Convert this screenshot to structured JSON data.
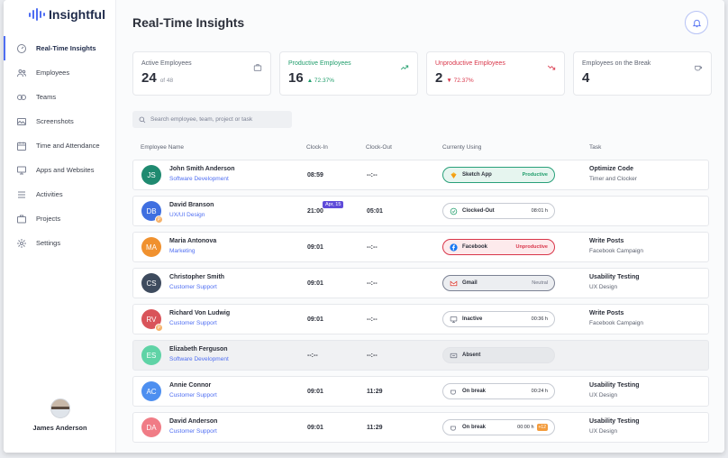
{
  "brand": {
    "name": "Insightful"
  },
  "sidebar": {
    "items": [
      {
        "label": "Real-Time Insights",
        "icon": "gauge-icon",
        "active": true
      },
      {
        "label": "Employees",
        "icon": "users-icon"
      },
      {
        "label": "Teams",
        "icon": "teams-icon"
      },
      {
        "label": "Screenshots",
        "icon": "image-icon"
      },
      {
        "label": "Time and Attendance",
        "icon": "calendar-icon"
      },
      {
        "label": "Apps and Websites",
        "icon": "monitor-icon"
      },
      {
        "label": "Activities",
        "icon": "list-icon"
      },
      {
        "label": "Projects",
        "icon": "briefcase-icon"
      },
      {
        "label": "Settings",
        "icon": "gear-icon"
      }
    ],
    "user": {
      "name": "James Anderson"
    }
  },
  "header": {
    "title": "Real-Time Insights"
  },
  "cards": [
    {
      "label": "Active Employees",
      "value": "24",
      "sub": "of 48",
      "tone": "",
      "icon": "briefcase-icon"
    },
    {
      "label": "Productive Employees",
      "value": "16",
      "sub": "▲ 72.37%",
      "tone": "green",
      "icon": "trend-up-icon"
    },
    {
      "label": "Unproductive Employees",
      "value": "2",
      "sub": "▼ 72.37%",
      "tone": "red",
      "icon": "trend-down-icon"
    },
    {
      "label": "Employees on the Break",
      "value": "4",
      "sub": "",
      "tone": "",
      "icon": "coffee-icon"
    }
  ],
  "search": {
    "placeholder": "Search employee, team, project or task"
  },
  "table": {
    "headers": [
      "Employee Name",
      "Clock-In",
      "Clock-Out",
      "Currenty Using",
      "Task"
    ],
    "rows": [
      {
        "initials": "JS",
        "color": "#1f8a70",
        "name": "John Smith Anderson",
        "team": "Software Development",
        "clock_in": "08:59",
        "clock_out": "--:--",
        "date_badge": "",
        "p": false,
        "status": "productive",
        "app": "Sketch App",
        "app_icon": "sketch-icon",
        "right": "Productive",
        "over": "",
        "task": "Optimize Code",
        "project": "Timer and Clocker",
        "muted": false
      },
      {
        "initials": "DB",
        "color": "#3f6fe0",
        "name": "David Branson",
        "team": "UX/UI Design",
        "clock_in": "21:00",
        "clock_out": "05:01",
        "date_badge": "Apr, 15",
        "p": true,
        "status": "",
        "app": "Clocked-Out",
        "app_icon": "check-circle-icon",
        "right": "08:01 h",
        "over": "",
        "task": "",
        "project": "",
        "muted": false
      },
      {
        "initials": "MA",
        "color": "#f0912f",
        "name": "Maria Antonova",
        "team": "Marketing",
        "clock_in": "09:01",
        "clock_out": "--:--",
        "date_badge": "",
        "p": false,
        "status": "unproductive",
        "app": "Facebook",
        "app_icon": "facebook-icon",
        "right": "Unproductive",
        "over": "",
        "task": "Write Posts",
        "project": "Facebook Campaign",
        "muted": false
      },
      {
        "initials": "CS",
        "color": "#3e4b5e",
        "name": "Christopher Smith",
        "team": "Customer Support",
        "clock_in": "09:01",
        "clock_out": "--:--",
        "date_badge": "",
        "p": false,
        "status": "neutral",
        "app": "Gmail",
        "app_icon": "gmail-icon",
        "right": "Neutral",
        "over": "",
        "task": "Usability Testing",
        "project": "UX Design",
        "muted": false
      },
      {
        "initials": "RV",
        "color": "#d9545a",
        "name": "Richard Von Ludwig",
        "team": "Customer Support",
        "clock_in": "09:01",
        "clock_out": "--:--",
        "date_badge": "",
        "p": true,
        "status": "",
        "app": "Inactive",
        "app_icon": "monitor-icon",
        "right": "00:36 h",
        "over": "",
        "task": "Write Posts",
        "project": "Facebook Campaign",
        "muted": false
      },
      {
        "initials": "ES",
        "color": "#5fd3a6",
        "name": "Elizabeth Ferguson",
        "team": "Software Development",
        "clock_in": "--:--",
        "clock_out": "--:--",
        "date_badge": "",
        "p": false,
        "status": "absent",
        "app": "Absent",
        "app_icon": "absent-icon",
        "right": "",
        "over": "",
        "task": "",
        "project": "",
        "muted": true
      },
      {
        "initials": "AC",
        "color": "#4d8ff0",
        "name": "Annie Connor",
        "team": "Customer Support",
        "clock_in": "09:01",
        "clock_out": "11:29",
        "date_badge": "",
        "p": false,
        "status": "",
        "app": "On break",
        "app_icon": "cup-icon",
        "right": "00:24 h",
        "over": "",
        "task": "Usability Testing",
        "project": "UX Design",
        "muted": false
      },
      {
        "initials": "DA",
        "color": "#f07c86",
        "name": "David Anderson",
        "team": "Customer Support",
        "clock_in": "09:01",
        "clock_out": "11:29",
        "date_badge": "",
        "p": false,
        "status": "",
        "app": "On break",
        "app_icon": "cup-icon",
        "right": "00:00 h",
        "over": "+12",
        "task": "Usability Testing",
        "project": "UX Design",
        "muted": false
      }
    ]
  }
}
